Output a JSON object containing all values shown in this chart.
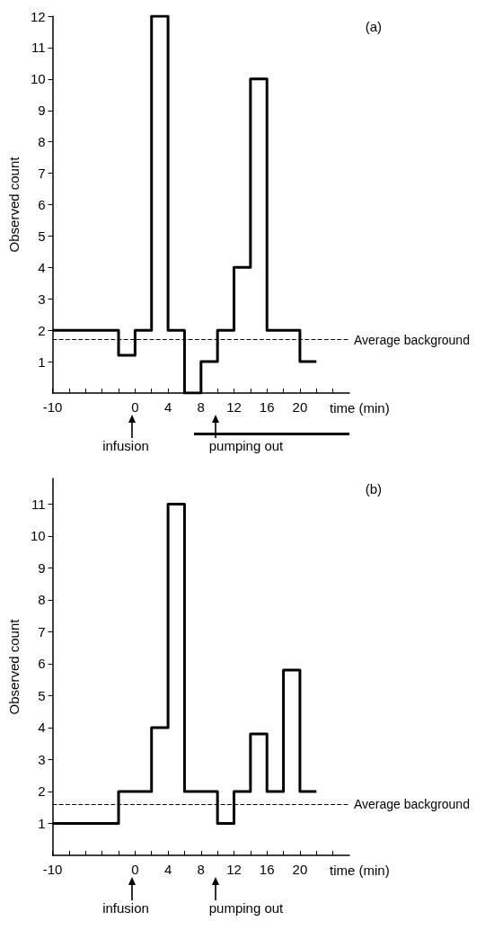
{
  "chart_data": [
    {
      "type": "step",
      "ylabel": "Observed count",
      "xlabel": "time (min)",
      "annotations": [
        "(a)",
        "infusion",
        "pumping out"
      ],
      "x": [
        -10,
        -2,
        0,
        2,
        4,
        6,
        8,
        10,
        12,
        14,
        16,
        20,
        22
      ],
      "series": [
        {
          "color": "#000000",
          "values": [
            2,
            1.2,
            2,
            12,
            2,
            0,
            1,
            2,
            4,
            10,
            2,
            1,
            1
          ]
        }
      ],
      "xlim": [
        -10,
        26
      ],
      "ylim": [
        0,
        12
      ],
      "xticks": [
        -10,
        {
          "value": -8,
          "label": null
        },
        {
          "value": -6,
          "label": null
        },
        {
          "value": -4,
          "label": null
        },
        {
          "value": -2,
          "label": null
        },
        0,
        {
          "value": 2,
          "label": null
        },
        4,
        {
          "value": 6,
          "label": null
        },
        8,
        {
          "value": 10,
          "label": null
        },
        12,
        {
          "value": 14,
          "label": null
        },
        16,
        {
          "value": 18,
          "label": null
        },
        20,
        {
          "value": 22,
          "label": null
        },
        {
          "value": 24,
          "label": null
        }
      ],
      "yticks": [
        1,
        2,
        3,
        4,
        5,
        6,
        7,
        8,
        9,
        10,
        11,
        12
      ],
      "ref_lines": [
        {
          "axis": "y",
          "value": 1.7,
          "label": "Average background",
          "line_style": "dashed",
          "color": "#000000"
        }
      ],
      "marker": "none",
      "line_style": "solid",
      "grid": false
    },
    {
      "type": "step",
      "ylabel": "Observed count",
      "xlabel": "time (min)",
      "annotations": [
        "(b)",
        "infusion",
        "pumping out"
      ],
      "x": [
        -10,
        -2,
        2,
        4,
        6,
        10,
        12,
        14,
        16,
        18,
        20,
        22
      ],
      "series": [
        {
          "color": "#000000",
          "values": [
            1,
            2,
            4,
            11,
            2,
            1,
            2,
            3.8,
            2,
            5.8,
            2,
            2
          ]
        }
      ],
      "xlim": [
        -10,
        26
      ],
      "ylim": [
        0,
        11.8
      ],
      "xticks": [
        -10,
        {
          "value": -8,
          "label": null
        },
        {
          "value": -6,
          "label": null
        },
        {
          "value": -4,
          "label": null
        },
        {
          "value": -2,
          "label": null
        },
        0,
        {
          "value": 2,
          "label": null
        },
        4,
        {
          "value": 6,
          "label": null
        },
        8,
        {
          "value": 10,
          "label": null
        },
        12,
        {
          "value": 14,
          "label": null
        },
        16,
        {
          "value": 18,
          "label": null
        },
        20,
        {
          "value": 22,
          "label": null
        },
        {
          "value": 24,
          "label": null
        }
      ],
      "yticks": [
        1,
        2,
        3,
        4,
        5,
        6,
        7,
        8,
        9,
        10,
        11
      ],
      "ref_lines": [
        {
          "axis": "y",
          "value": 1.6,
          "label": "Average background",
          "line_style": "dashed",
          "color": "#000000"
        }
      ],
      "marker": "none",
      "line_style": "solid",
      "grid": false
    }
  ]
}
